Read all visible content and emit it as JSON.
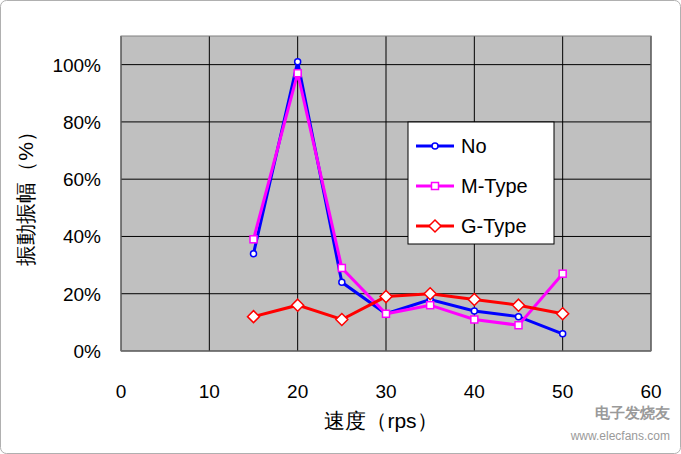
{
  "chart_data": {
    "type": "line",
    "x_label": "速度（rps）",
    "y_label": "振動振幅（%）",
    "x": [
      15,
      20,
      25,
      30,
      35,
      40,
      45,
      50
    ],
    "series": [
      {
        "name": "No",
        "color": "#0000ff",
        "marker": "circle",
        "values": [
          34,
          101,
          24,
          13,
          18,
          14,
          12,
          6
        ]
      },
      {
        "name": "M-Type",
        "color": "#ff00ff",
        "marker": "square",
        "values": [
          39,
          97,
          29,
          13,
          16,
          11,
          9,
          27
        ]
      },
      {
        "name": "G-Type",
        "color": "#ff0000",
        "marker": "diamond",
        "values": [
          12,
          16,
          11,
          19,
          20,
          18,
          16,
          13
        ]
      }
    ],
    "xlim": [
      0,
      60
    ],
    "xticks": [
      0,
      10,
      20,
      30,
      40,
      50,
      60
    ],
    "ylim": [
      0,
      110
    ],
    "yticks": [
      {
        "value": 0,
        "label": "0%"
      },
      {
        "value": 20,
        "label": "20%"
      },
      {
        "value": 40,
        "label": "40%"
      },
      {
        "value": 60,
        "label": "60%"
      },
      {
        "value": 80,
        "label": "80%"
      },
      {
        "value": 100,
        "label": "100%"
      }
    ],
    "grid": true,
    "legend": "right",
    "annotations": [
      "电子发烧友",
      "www.elecfans.com"
    ]
  }
}
